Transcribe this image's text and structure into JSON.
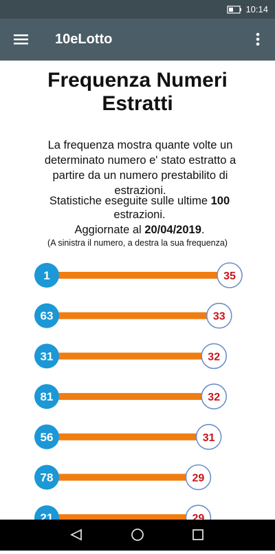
{
  "status_bar": {
    "time": "10:14"
  },
  "app_bar": {
    "title": "10eLotto"
  },
  "content": {
    "heading": "Frequenza Numeri Estratti",
    "description": "La frequenza mostra quante volte un determinato numero e' stato estratto a partire da un numero prestabilito di estrazioni.",
    "stats": {
      "prefix": "Statistiche eseguite sulle ultime ",
      "count": "100",
      "suffix": " estrazioni."
    },
    "updated": {
      "prefix": "Aggiornate al ",
      "date": "20/04/2019",
      "suffix": "."
    },
    "note": "(A sinistra il numero, a destra la sua frequenza)",
    "rows": [
      {
        "number": 1,
        "frequency": 35
      },
      {
        "number": 63,
        "frequency": 33
      },
      {
        "number": 31,
        "frequency": 32
      },
      {
        "number": 81,
        "frequency": 32
      },
      {
        "number": 56,
        "frequency": 31
      },
      {
        "number": 78,
        "frequency": 29
      },
      {
        "number": 21,
        "frequency": 29
      }
    ]
  }
}
